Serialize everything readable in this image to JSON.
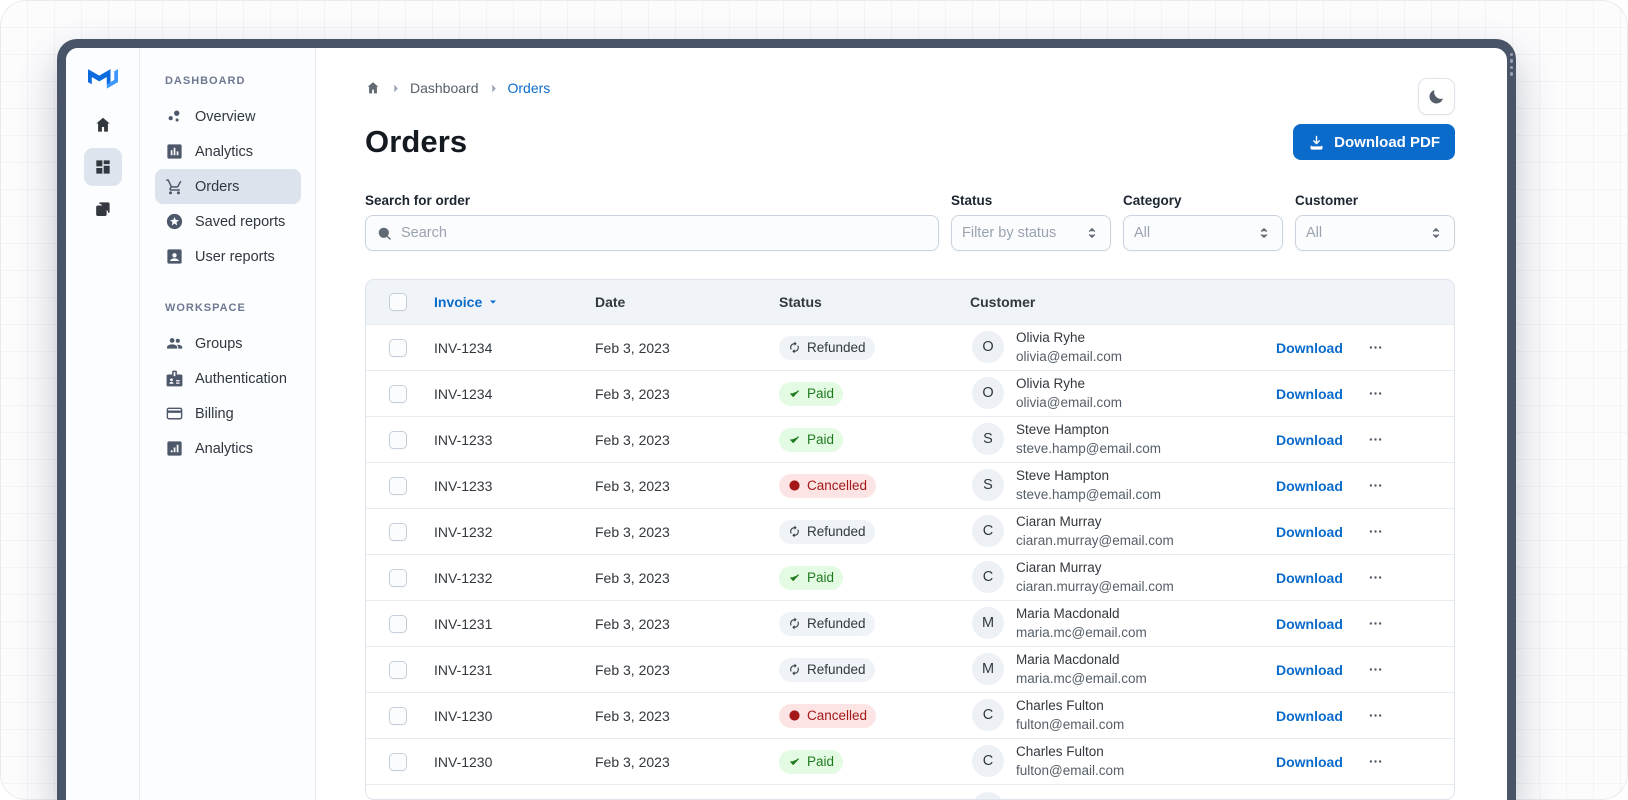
{
  "window": {
    "frame_color": "#4A5468"
  },
  "rail": {
    "logo_icon": "mui-logo",
    "items": [
      {
        "name": "home",
        "icon": "home",
        "selected": false
      },
      {
        "name": "dashboard",
        "icon": "grid",
        "selected": true
      },
      {
        "name": "layers",
        "icon": "layers",
        "selected": false
      }
    ]
  },
  "sidebar": {
    "sections": [
      {
        "title": "DASHBOARD",
        "items": [
          {
            "label": "Overview",
            "icon": "bubble-chart",
            "selected": false
          },
          {
            "label": "Analytics",
            "icon": "assessment",
            "selected": false
          },
          {
            "label": "Orders",
            "icon": "cart",
            "selected": true
          },
          {
            "label": "Saved reports",
            "icon": "star-circle",
            "selected": false
          },
          {
            "label": "User reports",
            "icon": "user-card",
            "selected": false
          }
        ]
      },
      {
        "title": "WORKSPACE",
        "items": [
          {
            "label": "Groups",
            "icon": "people",
            "selected": false
          },
          {
            "label": "Authentication",
            "icon": "badge",
            "selected": false
          },
          {
            "label": "Billing",
            "icon": "credit-card",
            "selected": false
          },
          {
            "label": "Analytics",
            "icon": "chart-square",
            "selected": false
          }
        ]
      }
    ]
  },
  "breadcrumb": {
    "items": [
      {
        "label": "Dashboard",
        "current": false
      },
      {
        "label": "Orders",
        "current": true
      }
    ]
  },
  "page": {
    "title": "Orders",
    "download_button_label": "Download PDF"
  },
  "filters": {
    "search": {
      "label": "Search for order",
      "placeholder": "Search"
    },
    "selects": [
      {
        "label": "Status",
        "value": "Filter by status"
      },
      {
        "label": "Category",
        "value": "All"
      },
      {
        "label": "Customer",
        "value": "All"
      }
    ]
  },
  "table": {
    "header": {
      "invoice": "Invoice",
      "date": "Date",
      "status": "Status",
      "customer": "Customer"
    },
    "sort_column": "Invoice",
    "row_download_label": "Download",
    "status_styles": {
      "Paid": {
        "bg": "#E3FBE3",
        "text": "#1F7A1F",
        "icon": "check"
      },
      "Refunded": {
        "bg": "#EFF3F7",
        "text": "#32383E",
        "icon": "autorenew"
      },
      "Cancelled": {
        "bg": "#FCE4E4",
        "text": "#A51818",
        "icon": "block"
      }
    },
    "rows": [
      {
        "invoice": "INV-1234",
        "date": "Feb 3, 2023",
        "status": "Refunded",
        "customer": {
          "initial": "O",
          "name": "Olivia Ryhe",
          "email": "olivia@email.com"
        }
      },
      {
        "invoice": "INV-1234",
        "date": "Feb 3, 2023",
        "status": "Paid",
        "customer": {
          "initial": "O",
          "name": "Olivia Ryhe",
          "email": "olivia@email.com"
        }
      },
      {
        "invoice": "INV-1233",
        "date": "Feb 3, 2023",
        "status": "Paid",
        "customer": {
          "initial": "S",
          "name": "Steve Hampton",
          "email": "steve.hamp@email.com"
        }
      },
      {
        "invoice": "INV-1233",
        "date": "Feb 3, 2023",
        "status": "Cancelled",
        "customer": {
          "initial": "S",
          "name": "Steve Hampton",
          "email": "steve.hamp@email.com"
        }
      },
      {
        "invoice": "INV-1232",
        "date": "Feb 3, 2023",
        "status": "Refunded",
        "customer": {
          "initial": "C",
          "name": "Ciaran Murray",
          "email": "ciaran.murray@email.com"
        }
      },
      {
        "invoice": "INV-1232",
        "date": "Feb 3, 2023",
        "status": "Paid",
        "customer": {
          "initial": "C",
          "name": "Ciaran Murray",
          "email": "ciaran.murray@email.com"
        }
      },
      {
        "invoice": "INV-1231",
        "date": "Feb 3, 2023",
        "status": "Refunded",
        "customer": {
          "initial": "M",
          "name": "Maria Macdonald",
          "email": "maria.mc@email.com"
        }
      },
      {
        "invoice": "INV-1231",
        "date": "Feb 3, 2023",
        "status": "Refunded",
        "customer": {
          "initial": "M",
          "name": "Maria Macdonald",
          "email": "maria.mc@email.com"
        }
      },
      {
        "invoice": "INV-1230",
        "date": "Feb 3, 2023",
        "status": "Cancelled",
        "customer": {
          "initial": "C",
          "name": "Charles Fulton",
          "email": "fulton@email.com"
        }
      },
      {
        "invoice": "INV-1230",
        "date": "Feb 3, 2023",
        "status": "Paid",
        "customer": {
          "initial": "C",
          "name": "Charles Fulton",
          "email": "fulton@email.com"
        }
      },
      {
        "partial": true,
        "invoice": "",
        "date": "",
        "status": "",
        "customer": {
          "initial": "",
          "name": "",
          "email": ""
        }
      }
    ]
  },
  "colors": {
    "accent": "#0B6BCB",
    "selected_nav_bg": "#DCE3EC",
    "table_header_bg": "#F0F4F8"
  }
}
